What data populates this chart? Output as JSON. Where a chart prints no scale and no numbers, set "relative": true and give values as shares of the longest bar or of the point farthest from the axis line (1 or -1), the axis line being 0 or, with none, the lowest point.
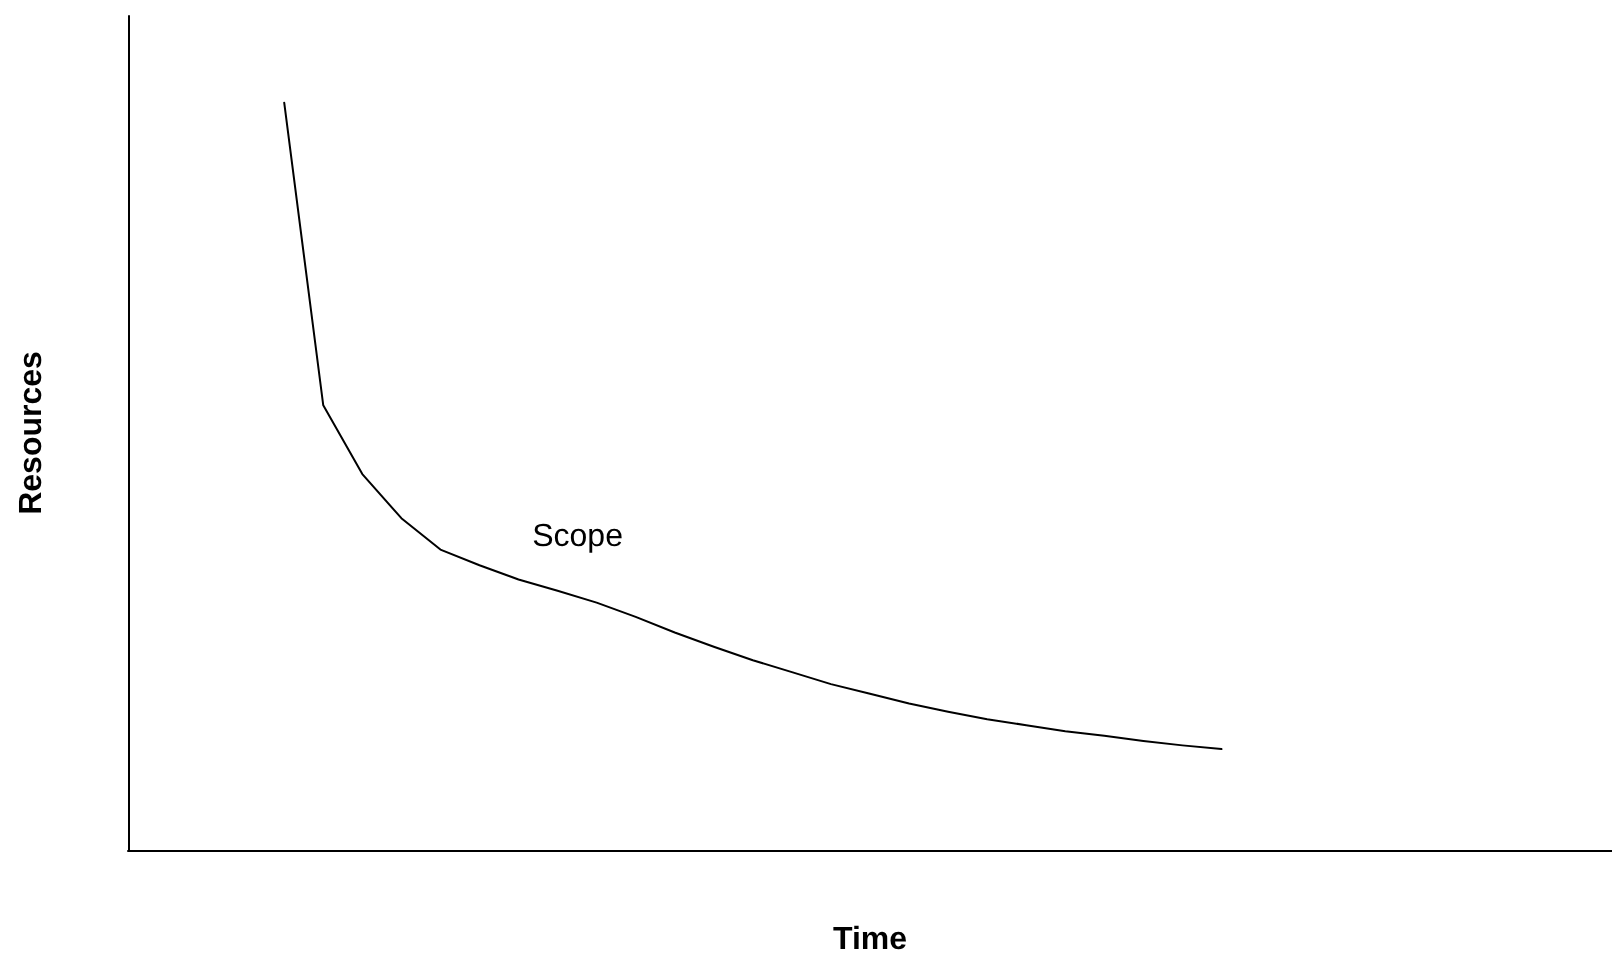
{
  "chart_data": {
    "type": "line",
    "xlabel": "Time",
    "ylabel": "Resources",
    "relative": true,
    "marker": "none",
    "categories": [
      null,
      null,
      null,
      null,
      null,
      null,
      null,
      null,
      null,
      null,
      null,
      null,
      null,
      null,
      null,
      null,
      null,
      null,
      null,
      null,
      null,
      null,
      null,
      null,
      null,
      null,
      null,
      null,
      null,
      null,
      null,
      null,
      null,
      null,
      null,
      null,
      null,
      null,
      null
    ],
    "series": [
      {
        "name": "Scope",
        "color": "#000000",
        "values": [
          null,
          null,
          null,
          null,
          1.0,
          0.595,
          0.503,
          0.444,
          0.402,
          0.381,
          0.362,
          0.347,
          0.331,
          0.312,
          0.291,
          0.272,
          0.254,
          0.238,
          0.222,
          0.209,
          0.196,
          0.185,
          0.175,
          0.167,
          0.159,
          0.153,
          0.146,
          0.14,
          0.135,
          null,
          null,
          null,
          null,
          null,
          null,
          null,
          null,
          null,
          null
        ]
      }
    ]
  }
}
